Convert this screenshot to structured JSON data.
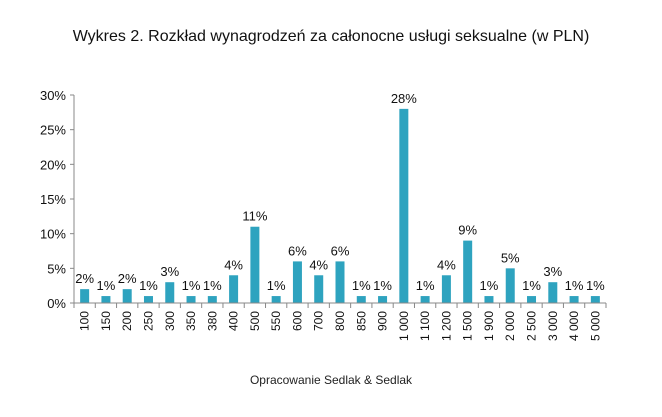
{
  "chart_data": {
    "type": "bar",
    "title": "Wykres 2. Rozkład wynagrodzeń za całonocne usługi seksualne (w PLN)",
    "source": "Opracowanie Sedlak & Sedlak",
    "xlabel": "",
    "ylabel": "",
    "ylim": [
      0,
      30
    ],
    "yticks": [
      "0%",
      "5%",
      "10%",
      "15%",
      "20%",
      "25%",
      "30%"
    ],
    "categories": [
      "100",
      "150",
      "200",
      "250",
      "300",
      "350",
      "380",
      "400",
      "500",
      "550",
      "600",
      "700",
      "800",
      "850",
      "900",
      "1 000",
      "1 100",
      "1 200",
      "1 500",
      "1 900",
      "2 000",
      "2 500",
      "3 000",
      "4 000",
      "5 000"
    ],
    "values": [
      2,
      1,
      2,
      1,
      3,
      1,
      1,
      4,
      11,
      1,
      6,
      4,
      6,
      1,
      1,
      28,
      1,
      4,
      9,
      1,
      5,
      1,
      3,
      1,
      1
    ],
    "data_labels": [
      "2%",
      "1%",
      "2%",
      "1%",
      "3%",
      "1%",
      "1%",
      "4%",
      "11%",
      "1%",
      "6%",
      "4%",
      "6%",
      "1%",
      "1%",
      "28%",
      "1%",
      "4%",
      "9%",
      "1%",
      "5%",
      "1%",
      "3%",
      "1%",
      "1%"
    ],
    "bar_color": "#2ea3bf",
    "grid": false,
    "legend": "none"
  }
}
